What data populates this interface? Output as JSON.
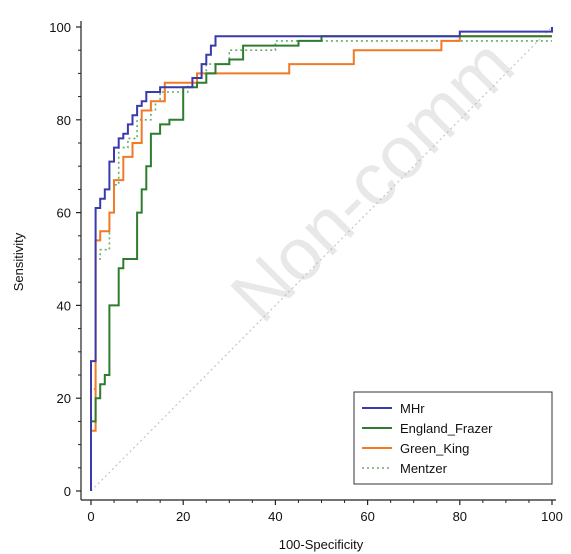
{
  "chart_data": {
    "type": "line",
    "xlabel": "100-Specificity",
    "ylabel": "Sensitivity",
    "xlim": [
      0,
      100
    ],
    "ylim": [
      0,
      100
    ],
    "x_ticks": [
      "0",
      "20",
      "40",
      "60",
      "80",
      "100"
    ],
    "y_ticks": [
      "0",
      "20",
      "40",
      "60",
      "80",
      "100"
    ],
    "grid": false,
    "legend_position": "bottom-right",
    "watermark": "Non-comm",
    "reference_line": {
      "style": "dotted",
      "color": "#bbbbbb",
      "points": [
        [
          0,
          0
        ],
        [
          100,
          100
        ]
      ]
    },
    "series": [
      {
        "name": "MHr",
        "color": "#3a3aaa",
        "dash": "solid",
        "points": [
          [
            0,
            0
          ],
          [
            0,
            23
          ],
          [
            0,
            28
          ],
          [
            1,
            28
          ],
          [
            1,
            61
          ],
          [
            2,
            61
          ],
          [
            2,
            63
          ],
          [
            3,
            63
          ],
          [
            3,
            65
          ],
          [
            4,
            65
          ],
          [
            4,
            71
          ],
          [
            5,
            71
          ],
          [
            5,
            74
          ],
          [
            6,
            74
          ],
          [
            6,
            76
          ],
          [
            7,
            76
          ],
          [
            7,
            77
          ],
          [
            8,
            77
          ],
          [
            8,
            79
          ],
          [
            9,
            79
          ],
          [
            9,
            81
          ],
          [
            10,
            81
          ],
          [
            10,
            83
          ],
          [
            11,
            83
          ],
          [
            11,
            84
          ],
          [
            12,
            84
          ],
          [
            12,
            86
          ],
          [
            15,
            86
          ],
          [
            15,
            87
          ],
          [
            22,
            87
          ],
          [
            22,
            89
          ],
          [
            24,
            89
          ],
          [
            24,
            92
          ],
          [
            25,
            92
          ],
          [
            25,
            94
          ],
          [
            26,
            94
          ],
          [
            26,
            96
          ],
          [
            27,
            96
          ],
          [
            27,
            98
          ],
          [
            40,
            98
          ],
          [
            52,
            98
          ],
          [
            80,
            98
          ],
          [
            80,
            99
          ],
          [
            100,
            99
          ],
          [
            100,
            100
          ]
        ]
      },
      {
        "name": "England_Frazer",
        "color": "#2e7d2e",
        "dash": "solid",
        "points": [
          [
            0,
            0
          ],
          [
            0,
            15
          ],
          [
            1,
            15
          ],
          [
            1,
            20
          ],
          [
            2,
            20
          ],
          [
            2,
            23
          ],
          [
            3,
            23
          ],
          [
            3,
            25
          ],
          [
            4,
            25
          ],
          [
            4,
            40
          ],
          [
            6,
            40
          ],
          [
            6,
            48
          ],
          [
            7,
            48
          ],
          [
            7,
            50
          ],
          [
            10,
            50
          ],
          [
            10,
            60
          ],
          [
            11,
            60
          ],
          [
            11,
            65
          ],
          [
            12,
            65
          ],
          [
            12,
            70
          ],
          [
            13,
            70
          ],
          [
            13,
            77
          ],
          [
            15,
            77
          ],
          [
            15,
            79
          ],
          [
            17,
            79
          ],
          [
            17,
            80
          ],
          [
            20,
            80
          ],
          [
            20,
            87
          ],
          [
            23,
            87
          ],
          [
            23,
            88
          ],
          [
            25,
            88
          ],
          [
            25,
            90
          ],
          [
            27,
            90
          ],
          [
            27,
            92
          ],
          [
            30,
            92
          ],
          [
            30,
            93
          ],
          [
            33,
            93
          ],
          [
            33,
            96
          ],
          [
            45,
            96
          ],
          [
            45,
            97
          ],
          [
            50,
            97
          ],
          [
            50,
            98
          ],
          [
            100,
            98
          ]
        ]
      },
      {
        "name": "Green_King",
        "color": "#f07a26",
        "dash": "solid",
        "points": [
          [
            0,
            0
          ],
          [
            0,
            13
          ],
          [
            1,
            13
          ],
          [
            1,
            54
          ],
          [
            2,
            54
          ],
          [
            2,
            56
          ],
          [
            4,
            56
          ],
          [
            4,
            60
          ],
          [
            5,
            60
          ],
          [
            5,
            67
          ],
          [
            7,
            67
          ],
          [
            7,
            72
          ],
          [
            9,
            72
          ],
          [
            9,
            75
          ],
          [
            11,
            75
          ],
          [
            11,
            82
          ],
          [
            13,
            82
          ],
          [
            13,
            84
          ],
          [
            16,
            84
          ],
          [
            16,
            88
          ],
          [
            23,
            88
          ],
          [
            23,
            90
          ],
          [
            43,
            90
          ],
          [
            43,
            92
          ],
          [
            57,
            92
          ],
          [
            57,
            95
          ],
          [
            76,
            95
          ],
          [
            76,
            97
          ],
          [
            80,
            97
          ],
          [
            80,
            98
          ],
          [
            100,
            98
          ]
        ]
      },
      {
        "name": "Mentzer",
        "color": "#6aaa6a",
        "dash": "dotted",
        "points": [
          [
            0,
            0
          ],
          [
            0,
            22
          ],
          [
            1,
            22
          ],
          [
            1,
            50
          ],
          [
            2,
            50
          ],
          [
            2,
            52
          ],
          [
            4,
            52
          ],
          [
            4,
            60
          ],
          [
            5,
            60
          ],
          [
            5,
            66
          ],
          [
            6,
            66
          ],
          [
            6,
            74
          ],
          [
            8,
            74
          ],
          [
            8,
            76
          ],
          [
            10,
            76
          ],
          [
            10,
            80
          ],
          [
            13,
            80
          ],
          [
            13,
            82
          ],
          [
            14,
            82
          ],
          [
            14,
            84
          ],
          [
            15,
            84
          ],
          [
            15,
            86
          ],
          [
            21,
            86
          ],
          [
            21,
            88
          ],
          [
            25,
            88
          ],
          [
            25,
            92
          ],
          [
            30,
            92
          ],
          [
            30,
            95
          ],
          [
            40,
            95
          ],
          [
            40,
            97
          ],
          [
            100,
            97
          ]
        ]
      }
    ]
  }
}
